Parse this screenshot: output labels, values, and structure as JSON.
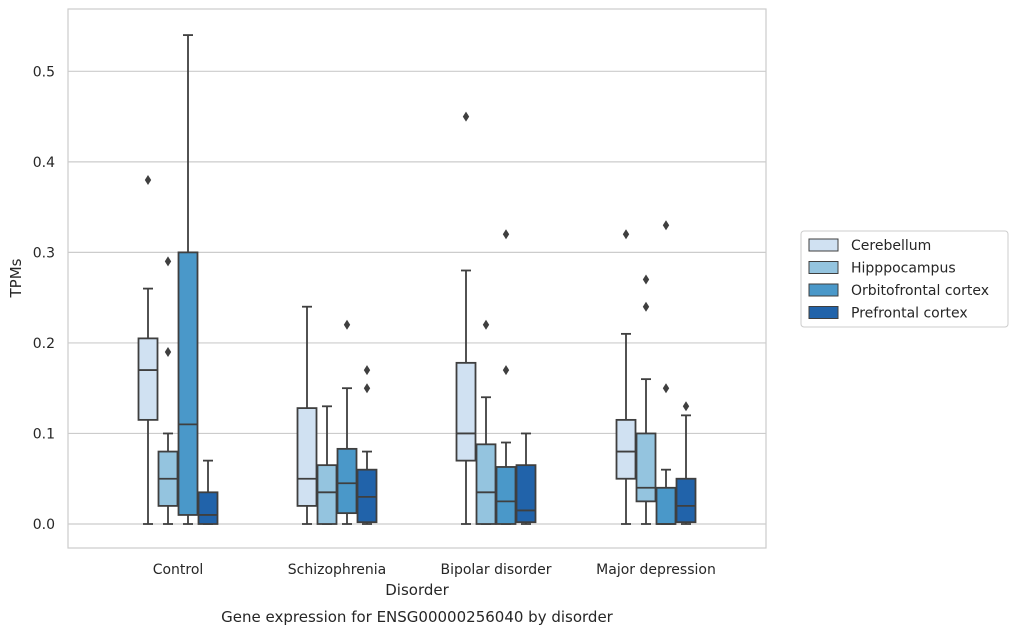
{
  "chart_data": {
    "type": "box",
    "title": "Gene expression for ENSG00000256040 by disorder",
    "xlabel": "Disorder",
    "ylabel": "TPMs",
    "ylim": [
      -0.026,
      0.57
    ],
    "yticks": [
      0.0,
      0.1,
      0.2,
      0.3,
      0.4,
      0.5
    ],
    "ytick_labels": [
      "0.0",
      "0.1",
      "0.2",
      "0.3",
      "0.4",
      "0.5"
    ],
    "grid": "horizontal",
    "legend_position": "right",
    "categories": [
      "Control",
      "Schizophrenia",
      "Bipolar disorder",
      "Major depression"
    ],
    "series": [
      {
        "name": "Cerebellum",
        "color": "#d0e1f2",
        "boxes": [
          {
            "whislo": 0.0,
            "q1": 0.115,
            "med": 0.17,
            "q3": 0.205,
            "whishi": 0.26,
            "fliers": [
              0.38
            ]
          },
          {
            "whislo": 0.0,
            "q1": 0.02,
            "med": 0.05,
            "q3": 0.128,
            "whishi": 0.24,
            "fliers": []
          },
          {
            "whislo": 0.0,
            "q1": 0.07,
            "med": 0.1,
            "q3": 0.178,
            "whishi": 0.28,
            "fliers": [
              0.45
            ]
          },
          {
            "whislo": 0.0,
            "q1": 0.05,
            "med": 0.08,
            "q3": 0.115,
            "whishi": 0.21,
            "fliers": [
              0.32
            ]
          }
        ]
      },
      {
        "name": "Hipppocampus",
        "color": "#94c4df",
        "boxes": [
          {
            "whislo": 0.0,
            "q1": 0.02,
            "med": 0.05,
            "q3": 0.08,
            "whishi": 0.1,
            "fliers": [
              0.19,
              0.29
            ]
          },
          {
            "whislo": 0.0,
            "q1": 0.0,
            "med": 0.035,
            "q3": 0.065,
            "whishi": 0.13,
            "fliers": []
          },
          {
            "whislo": 0.0,
            "q1": 0.0,
            "med": 0.035,
            "q3": 0.088,
            "whishi": 0.14,
            "fliers": [
              0.22
            ]
          },
          {
            "whislo": 0.0,
            "q1": 0.025,
            "med": 0.04,
            "q3": 0.1,
            "whishi": 0.16,
            "fliers": [
              0.24,
              0.27
            ]
          }
        ]
      },
      {
        "name": "Orbitofrontal cortex",
        "color": "#4a98c9",
        "boxes": [
          {
            "whislo": 0.0,
            "q1": 0.01,
            "med": 0.11,
            "q3": 0.3,
            "whishi": 0.54,
            "fliers": []
          },
          {
            "whislo": 0.0,
            "q1": 0.012,
            "med": 0.045,
            "q3": 0.083,
            "whishi": 0.15,
            "fliers": [
              0.22
            ]
          },
          {
            "whislo": 0.0,
            "q1": 0.0,
            "med": 0.025,
            "q3": 0.063,
            "whishi": 0.09,
            "fliers": [
              0.17,
              0.32
            ]
          },
          {
            "whislo": 0.0,
            "q1": 0.0,
            "med": 0.0,
            "q3": 0.04,
            "whishi": 0.06,
            "fliers": [
              0.15,
              0.33
            ]
          }
        ]
      },
      {
        "name": "Prefrontal cortex",
        "color": "#2163aa",
        "boxes": [
          {
            "whislo": 0.0,
            "q1": 0.0,
            "med": 0.01,
            "q3": 0.035,
            "whishi": 0.07,
            "fliers": []
          },
          {
            "whislo": 0.0,
            "q1": 0.002,
            "med": 0.03,
            "q3": 0.06,
            "whishi": 0.08,
            "fliers": [
              0.15,
              0.17
            ]
          },
          {
            "whislo": 0.0,
            "q1": 0.002,
            "med": 0.015,
            "q3": 0.065,
            "whishi": 0.1,
            "fliers": []
          },
          {
            "whislo": 0.0,
            "q1": 0.002,
            "med": 0.02,
            "q3": 0.05,
            "whishi": 0.12,
            "fliers": [
              0.13
            ]
          }
        ]
      }
    ]
  }
}
